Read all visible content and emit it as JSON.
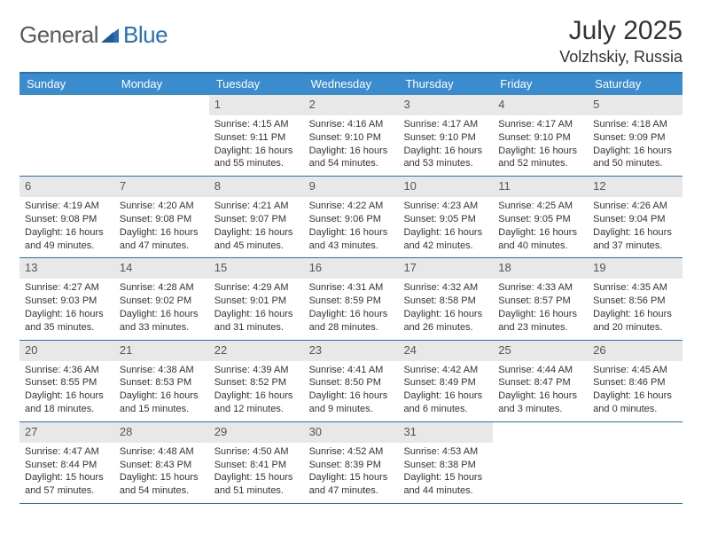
{
  "brand": {
    "part1": "General",
    "part2": "Blue"
  },
  "title": "July 2025",
  "location": "Volzhskiy, Russia",
  "colors": {
    "header_bg": "#3b8bcf",
    "border": "#2a6fb5",
    "daynum_bg": "#e8e8e8",
    "text": "#333333",
    "logo_gray": "#6a6a6a",
    "logo_blue": "#2a6fb5",
    "white": "#ffffff"
  },
  "day_headers": [
    "Sunday",
    "Monday",
    "Tuesday",
    "Wednesday",
    "Thursday",
    "Friday",
    "Saturday"
  ],
  "weeks": [
    [
      null,
      null,
      {
        "n": "1",
        "sunrise": "Sunrise: 4:15 AM",
        "sunset": "Sunset: 9:11 PM",
        "daylight": "Daylight: 16 hours and 55 minutes."
      },
      {
        "n": "2",
        "sunrise": "Sunrise: 4:16 AM",
        "sunset": "Sunset: 9:10 PM",
        "daylight": "Daylight: 16 hours and 54 minutes."
      },
      {
        "n": "3",
        "sunrise": "Sunrise: 4:17 AM",
        "sunset": "Sunset: 9:10 PM",
        "daylight": "Daylight: 16 hours and 53 minutes."
      },
      {
        "n": "4",
        "sunrise": "Sunrise: 4:17 AM",
        "sunset": "Sunset: 9:10 PM",
        "daylight": "Daylight: 16 hours and 52 minutes."
      },
      {
        "n": "5",
        "sunrise": "Sunrise: 4:18 AM",
        "sunset": "Sunset: 9:09 PM",
        "daylight": "Daylight: 16 hours and 50 minutes."
      }
    ],
    [
      {
        "n": "6",
        "sunrise": "Sunrise: 4:19 AM",
        "sunset": "Sunset: 9:08 PM",
        "daylight": "Daylight: 16 hours and 49 minutes."
      },
      {
        "n": "7",
        "sunrise": "Sunrise: 4:20 AM",
        "sunset": "Sunset: 9:08 PM",
        "daylight": "Daylight: 16 hours and 47 minutes."
      },
      {
        "n": "8",
        "sunrise": "Sunrise: 4:21 AM",
        "sunset": "Sunset: 9:07 PM",
        "daylight": "Daylight: 16 hours and 45 minutes."
      },
      {
        "n": "9",
        "sunrise": "Sunrise: 4:22 AM",
        "sunset": "Sunset: 9:06 PM",
        "daylight": "Daylight: 16 hours and 43 minutes."
      },
      {
        "n": "10",
        "sunrise": "Sunrise: 4:23 AM",
        "sunset": "Sunset: 9:05 PM",
        "daylight": "Daylight: 16 hours and 42 minutes."
      },
      {
        "n": "11",
        "sunrise": "Sunrise: 4:25 AM",
        "sunset": "Sunset: 9:05 PM",
        "daylight": "Daylight: 16 hours and 40 minutes."
      },
      {
        "n": "12",
        "sunrise": "Sunrise: 4:26 AM",
        "sunset": "Sunset: 9:04 PM",
        "daylight": "Daylight: 16 hours and 37 minutes."
      }
    ],
    [
      {
        "n": "13",
        "sunrise": "Sunrise: 4:27 AM",
        "sunset": "Sunset: 9:03 PM",
        "daylight": "Daylight: 16 hours and 35 minutes."
      },
      {
        "n": "14",
        "sunrise": "Sunrise: 4:28 AM",
        "sunset": "Sunset: 9:02 PM",
        "daylight": "Daylight: 16 hours and 33 minutes."
      },
      {
        "n": "15",
        "sunrise": "Sunrise: 4:29 AM",
        "sunset": "Sunset: 9:01 PM",
        "daylight": "Daylight: 16 hours and 31 minutes."
      },
      {
        "n": "16",
        "sunrise": "Sunrise: 4:31 AM",
        "sunset": "Sunset: 8:59 PM",
        "daylight": "Daylight: 16 hours and 28 minutes."
      },
      {
        "n": "17",
        "sunrise": "Sunrise: 4:32 AM",
        "sunset": "Sunset: 8:58 PM",
        "daylight": "Daylight: 16 hours and 26 minutes."
      },
      {
        "n": "18",
        "sunrise": "Sunrise: 4:33 AM",
        "sunset": "Sunset: 8:57 PM",
        "daylight": "Daylight: 16 hours and 23 minutes."
      },
      {
        "n": "19",
        "sunrise": "Sunrise: 4:35 AM",
        "sunset": "Sunset: 8:56 PM",
        "daylight": "Daylight: 16 hours and 20 minutes."
      }
    ],
    [
      {
        "n": "20",
        "sunrise": "Sunrise: 4:36 AM",
        "sunset": "Sunset: 8:55 PM",
        "daylight": "Daylight: 16 hours and 18 minutes."
      },
      {
        "n": "21",
        "sunrise": "Sunrise: 4:38 AM",
        "sunset": "Sunset: 8:53 PM",
        "daylight": "Daylight: 16 hours and 15 minutes."
      },
      {
        "n": "22",
        "sunrise": "Sunrise: 4:39 AM",
        "sunset": "Sunset: 8:52 PM",
        "daylight": "Daylight: 16 hours and 12 minutes."
      },
      {
        "n": "23",
        "sunrise": "Sunrise: 4:41 AM",
        "sunset": "Sunset: 8:50 PM",
        "daylight": "Daylight: 16 hours and 9 minutes."
      },
      {
        "n": "24",
        "sunrise": "Sunrise: 4:42 AM",
        "sunset": "Sunset: 8:49 PM",
        "daylight": "Daylight: 16 hours and 6 minutes."
      },
      {
        "n": "25",
        "sunrise": "Sunrise: 4:44 AM",
        "sunset": "Sunset: 8:47 PM",
        "daylight": "Daylight: 16 hours and 3 minutes."
      },
      {
        "n": "26",
        "sunrise": "Sunrise: 4:45 AM",
        "sunset": "Sunset: 8:46 PM",
        "daylight": "Daylight: 16 hours and 0 minutes."
      }
    ],
    [
      {
        "n": "27",
        "sunrise": "Sunrise: 4:47 AM",
        "sunset": "Sunset: 8:44 PM",
        "daylight": "Daylight: 15 hours and 57 minutes."
      },
      {
        "n": "28",
        "sunrise": "Sunrise: 4:48 AM",
        "sunset": "Sunset: 8:43 PM",
        "daylight": "Daylight: 15 hours and 54 minutes."
      },
      {
        "n": "29",
        "sunrise": "Sunrise: 4:50 AM",
        "sunset": "Sunset: 8:41 PM",
        "daylight": "Daylight: 15 hours and 51 minutes."
      },
      {
        "n": "30",
        "sunrise": "Sunrise: 4:52 AM",
        "sunset": "Sunset: 8:39 PM",
        "daylight": "Daylight: 15 hours and 47 minutes."
      },
      {
        "n": "31",
        "sunrise": "Sunrise: 4:53 AM",
        "sunset": "Sunset: 8:38 PM",
        "daylight": "Daylight: 15 hours and 44 minutes."
      },
      null,
      null
    ]
  ]
}
